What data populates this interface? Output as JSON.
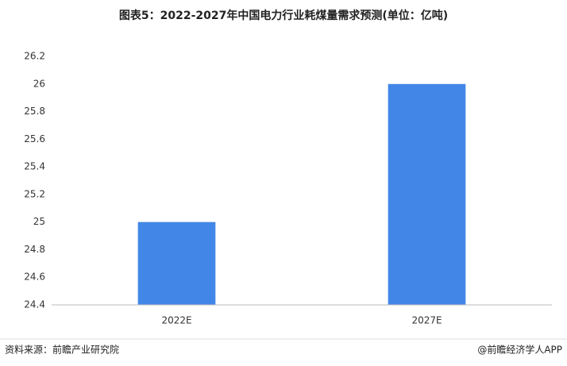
{
  "chart_data": {
    "type": "bar",
    "title": "图表5：2022-2027年中国电力行业耗煤量需求预测(单位：亿吨)",
    "categories": [
      "2022E",
      "2027E"
    ],
    "values": [
      25,
      26
    ],
    "color": "#4287e8",
    "ylim": [
      24.4,
      26.2
    ],
    "yticks": [
      24.4,
      24.6,
      24.8,
      25,
      25.2,
      25.4,
      25.6,
      25.8,
      26,
      26.2
    ],
    "grid": false,
    "source": "资料来源：前瞻产业研究院",
    "credit": "@前瞻经济学人APP"
  }
}
